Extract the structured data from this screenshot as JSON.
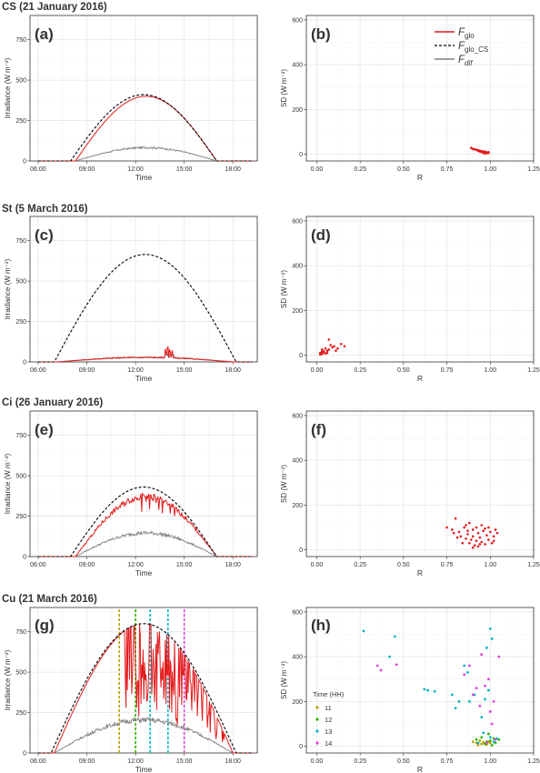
{
  "colors": {
    "glo": "#e41a1c",
    "glo_cs": "#000000",
    "dif": "#7f7f7f",
    "h11": "#b8a000",
    "h12": "#2db300",
    "h13": "#00b5c8",
    "h14": "#e040e0",
    "point": "#e41a1c"
  },
  "legend_main": {
    "glo": "F",
    "glo_sub": "glo",
    "glo_cs": "F",
    "glo_cs_sub": "glo_CS",
    "dif": "F",
    "dif_sub": "dif"
  },
  "legend_time": {
    "title": "Time (HH)",
    "entries": [
      "11",
      "12",
      "13",
      "14"
    ]
  },
  "rows": [
    {
      "title": "CS (21 January 2016)",
      "left_tag": "(a)",
      "right_tag": "(b)"
    },
    {
      "title": "St (5 March 2016)",
      "left_tag": "(c)",
      "right_tag": "(d)"
    },
    {
      "title": "Ci (26 January 2016)",
      "left_tag": "(e)",
      "right_tag": "(f)"
    },
    {
      "title": "Cu (21 March 2016)",
      "left_tag": "(g)",
      "right_tag": "(h)"
    }
  ],
  "chart_data": [
    {
      "type": "line",
      "panel": "(a)",
      "xlabel": "Time",
      "ylabel": "Irradiance (W m⁻²)",
      "xlim": [
        5.5,
        19.5
      ],
      "ylim": [
        0,
        900
      ],
      "xticks": [
        6,
        9,
        12,
        15,
        18
      ],
      "xtick_labels": [
        "06:00",
        "09:00",
        "12:00",
        "15:00",
        "18:00"
      ],
      "yticks": [
        0,
        250,
        500,
        750
      ],
      "series": [
        {
          "name": "F_glo_CS",
          "style": "dashed",
          "peak": 410,
          "start": 8.0,
          "end": 17.0
        },
        {
          "name": "F_glo",
          "style": "solid",
          "peak": 400,
          "start": 8.3,
          "end": 17.0
        },
        {
          "name": "F_dif",
          "style": "solid",
          "peak": 85,
          "start": 8.3,
          "end": 17.0
        }
      ]
    },
    {
      "type": "scatter",
      "panel": "(b)",
      "xlabel": "R",
      "ylabel": "SD (W m⁻²)",
      "xlim": [
        -0.06,
        1.25
      ],
      "ylim": [
        -30,
        620
      ],
      "xticks": [
        0.0,
        0.25,
        0.5,
        0.75,
        1.0,
        1.25
      ],
      "xtick_labels": [
        "0.00",
        "0.25",
        "0.50",
        "0.75",
        "1.00",
        "1.25"
      ],
      "yticks": [
        0,
        200,
        400,
        600
      ],
      "legend_position": "top-right",
      "points": [
        [
          0.89,
          28
        ],
        [
          0.9,
          24
        ],
        [
          0.91,
          22
        ],
        [
          0.92,
          20
        ],
        [
          0.93,
          18
        ],
        [
          0.94,
          16
        ],
        [
          0.95,
          14
        ],
        [
          0.96,
          12
        ],
        [
          0.97,
          10
        ],
        [
          0.98,
          8
        ],
        [
          0.95,
          10
        ],
        [
          0.96,
          6
        ],
        [
          0.97,
          4
        ],
        [
          0.98,
          5
        ],
        [
          0.99,
          6
        ],
        [
          0.94,
          12
        ],
        [
          0.93,
          15
        ],
        [
          0.97,
          12
        ],
        [
          0.99,
          10
        ]
      ]
    },
    {
      "type": "line",
      "panel": "(c)",
      "xlabel": "Time",
      "ylabel": "Irradiance (W m⁻²)",
      "xlim": [
        5.5,
        19.5
      ],
      "ylim": [
        0,
        900
      ],
      "xticks": [
        6,
        9,
        12,
        15,
        18
      ],
      "xtick_labels": [
        "06:00",
        "09:00",
        "12:00",
        "15:00",
        "18:00"
      ],
      "yticks": [
        0,
        250,
        500,
        750
      ],
      "series": [
        {
          "name": "F_glo_CS",
          "style": "dashed",
          "peak": 665,
          "start": 7.0,
          "end": 18.2
        },
        {
          "name": "F_glo",
          "style": "solid",
          "peak": 30,
          "start": 7.2,
          "end": 18.0
        },
        {
          "name": "F_dif",
          "style": "solid",
          "peak": 28,
          "start": 7.2,
          "end": 18.0
        }
      ]
    },
    {
      "type": "scatter",
      "panel": "(d)",
      "xlabel": "R",
      "ylabel": "SD (W m⁻²)",
      "xlim": [
        -0.06,
        1.25
      ],
      "ylim": [
        -30,
        620
      ],
      "xticks": [
        0.0,
        0.25,
        0.5,
        0.75,
        1.0,
        1.25
      ],
      "xtick_labels": [
        "0.00",
        "0.25",
        "0.50",
        "0.75",
        "1.00",
        "1.25"
      ],
      "yticks": [
        0,
        200,
        400,
        600
      ],
      "points": [
        [
          0.02,
          10
        ],
        [
          0.03,
          5
        ],
        [
          0.04,
          12
        ],
        [
          0.05,
          8
        ],
        [
          0.03,
          15
        ],
        [
          0.06,
          20
        ],
        [
          0.07,
          25
        ],
        [
          0.05,
          30
        ],
        [
          0.08,
          45
        ],
        [
          0.09,
          35
        ],
        [
          0.1,
          40
        ],
        [
          0.12,
          30
        ],
        [
          0.14,
          50
        ],
        [
          0.07,
          70
        ],
        [
          0.04,
          18
        ],
        [
          0.02,
          3
        ],
        [
          0.06,
          10
        ],
        [
          0.16,
          40
        ],
        [
          0.11,
          20
        ],
        [
          0.03,
          25
        ]
      ]
    },
    {
      "type": "line",
      "panel": "(e)",
      "xlabel": "Time",
      "ylabel": "Irradiance (W m⁻²)",
      "xlim": [
        5.5,
        19.5
      ],
      "ylim": [
        0,
        900
      ],
      "xticks": [
        6,
        9,
        12,
        15,
        18
      ],
      "xtick_labels": [
        "06:00",
        "09:00",
        "12:00",
        "15:00",
        "18:00"
      ],
      "yticks": [
        0,
        250,
        500,
        750
      ],
      "series": [
        {
          "name": "F_glo_CS",
          "style": "dashed",
          "peak": 430,
          "start": 8.0,
          "end": 17.0
        },
        {
          "name": "F_glo",
          "style": "solid",
          "peak": 400,
          "start": 8.3,
          "end": 17.0
        },
        {
          "name": "F_dif",
          "style": "solid",
          "peak": 150,
          "start": 8.3,
          "end": 17.0
        }
      ]
    },
    {
      "type": "scatter",
      "panel": "(f)",
      "xlabel": "R",
      "ylabel": "SD (W m⁻²)",
      "xlim": [
        -0.06,
        1.25
      ],
      "ylim": [
        -30,
        620
      ],
      "xticks": [
        0.0,
        0.25,
        0.5,
        0.75,
        1.0,
        1.25
      ],
      "xtick_labels": [
        "0.00",
        "0.25",
        "0.50",
        "0.75",
        "1.00",
        "1.25"
      ],
      "yticks": [
        0,
        200,
        400,
        600
      ],
      "points": [
        [
          0.75,
          100
        ],
        [
          0.78,
          90
        ],
        [
          0.8,
          140
        ],
        [
          0.82,
          80
        ],
        [
          0.83,
          60
        ],
        [
          0.85,
          100
        ],
        [
          0.86,
          50
        ],
        [
          0.87,
          70
        ],
        [
          0.88,
          30
        ],
        [
          0.89,
          45
        ],
        [
          0.9,
          60
        ],
        [
          0.9,
          90
        ],
        [
          0.91,
          20
        ],
        [
          0.92,
          40
        ],
        [
          0.93,
          75
        ],
        [
          0.94,
          55
        ],
        [
          0.95,
          35
        ],
        [
          0.96,
          85
        ],
        [
          0.97,
          25
        ],
        [
          0.98,
          65
        ],
        [
          0.99,
          45
        ],
        [
          1.0,
          80
        ],
        [
          1.01,
          30
        ],
        [
          1.02,
          60
        ],
        [
          1.03,
          90
        ],
        [
          0.86,
          110
        ],
        [
          0.88,
          120
        ],
        [
          0.92,
          100
        ],
        [
          0.84,
          30
        ],
        [
          0.81,
          55
        ],
        [
          0.95,
          110
        ],
        [
          0.97,
          95
        ],
        [
          0.93,
          15
        ],
        [
          1.04,
          75
        ],
        [
          0.9,
          10
        ],
        [
          0.87,
          85
        ],
        [
          0.94,
          25
        ],
        [
          0.99,
          100
        ],
        [
          0.79,
          75
        ],
        [
          1.02,
          40
        ]
      ]
    },
    {
      "type": "line",
      "panel": "(g)",
      "xlabel": "Time",
      "ylabel": "Irradiance (W m⁻²)",
      "xlim": [
        5.5,
        19.5
      ],
      "ylim": [
        0,
        900
      ],
      "xticks": [
        6,
        9,
        12,
        15,
        18
      ],
      "xtick_labels": [
        "06:00",
        "09:00",
        "12:00",
        "15:00",
        "18:00"
      ],
      "yticks": [
        0,
        250,
        500,
        750
      ],
      "vlines": [
        {
          "x": 11.0,
          "hour": "11"
        },
        {
          "x": 12.0,
          "hour": "12"
        },
        {
          "x": 12.9,
          "hour": "13"
        },
        {
          "x": 14.0,
          "hour": "13"
        },
        {
          "x": 15.0,
          "hour": "14"
        }
      ],
      "series": [
        {
          "name": "F_glo_CS",
          "style": "dashed",
          "peak": 800,
          "start": 6.8,
          "end": 18.2
        },
        {
          "name": "F_glo",
          "style": "solid",
          "peak": 800,
          "start": 7.0,
          "end": 18.0
        },
        {
          "name": "F_dif",
          "style": "solid",
          "peak": 210,
          "start": 7.0,
          "end": 18.0
        }
      ]
    },
    {
      "type": "scatter",
      "panel": "(h)",
      "xlabel": "R",
      "ylabel": "SD (W m⁻²)",
      "xlim": [
        -0.06,
        1.25
      ],
      "ylim": [
        -30,
        620
      ],
      "xticks": [
        0.0,
        0.25,
        0.5,
        0.75,
        1.0,
        1.25
      ],
      "xtick_labels": [
        "0.00",
        "0.25",
        "0.50",
        "0.75",
        "1.00",
        "1.25"
      ],
      "yticks": [
        0,
        200,
        400,
        600
      ],
      "legend_title": "Time (HH)",
      "points_by_hour": [
        {
          "hour": "11",
          "points": [
            [
              0.9,
              20
            ],
            [
              0.92,
              15
            ],
            [
              0.94,
              25
            ],
            [
              0.95,
              10
            ],
            [
              0.96,
              18
            ],
            [
              0.97,
              12
            ],
            [
              0.98,
              8
            ],
            [
              0.93,
              5
            ],
            [
              0.99,
              20
            ],
            [
              1.0,
              15
            ]
          ]
        },
        {
          "hour": "12",
          "points": [
            [
              0.92,
              30
            ],
            [
              0.95,
              40
            ],
            [
              0.98,
              20
            ],
            [
              1.0,
              25
            ],
            [
              1.02,
              35
            ],
            [
              1.03,
              15
            ],
            [
              1.05,
              30
            ],
            [
              0.97,
              10
            ],
            [
              1.01,
              5
            ],
            [
              0.99,
              55
            ]
          ]
        },
        {
          "hour": "13",
          "points": [
            [
              0.27,
              515
            ],
            [
              0.45,
              490
            ],
            [
              0.42,
              400
            ],
            [
              0.62,
              255
            ],
            [
              0.64,
              250
            ],
            [
              0.68,
              245
            ],
            [
              0.78,
              230
            ],
            [
              0.82,
              200
            ],
            [
              0.85,
              360
            ],
            [
              0.88,
              200
            ],
            [
              0.95,
              130
            ],
            [
              0.97,
              210
            ],
            [
              0.99,
              250
            ],
            [
              1.0,
              525
            ],
            [
              1.01,
              480
            ],
            [
              0.98,
              440
            ],
            [
              0.91,
              230
            ],
            [
              0.87,
              330
            ],
            [
              0.96,
              60
            ],
            [
              1.02,
              20
            ],
            [
              1.04,
              35
            ],
            [
              0.93,
              15
            ],
            [
              1.0,
              40
            ],
            [
              0.8,
              170
            ]
          ]
        },
        {
          "hour": "14",
          "points": [
            [
              0.35,
              360
            ],
            [
              0.37,
              340
            ],
            [
              0.46,
              365
            ],
            [
              0.85,
              320
            ],
            [
              0.9,
              230
            ],
            [
              0.92,
              260
            ],
            [
              0.95,
              410
            ],
            [
              0.97,
              270
            ],
            [
              1.0,
              155
            ],
            [
              1.02,
              200
            ],
            [
              1.05,
              400
            ],
            [
              0.88,
              360
            ],
            [
              0.94,
              180
            ],
            [
              0.99,
              300
            ],
            [
              1.01,
              100
            ],
            [
              0.98,
              15
            ],
            [
              1.03,
              30
            ]
          ]
        }
      ]
    }
  ]
}
